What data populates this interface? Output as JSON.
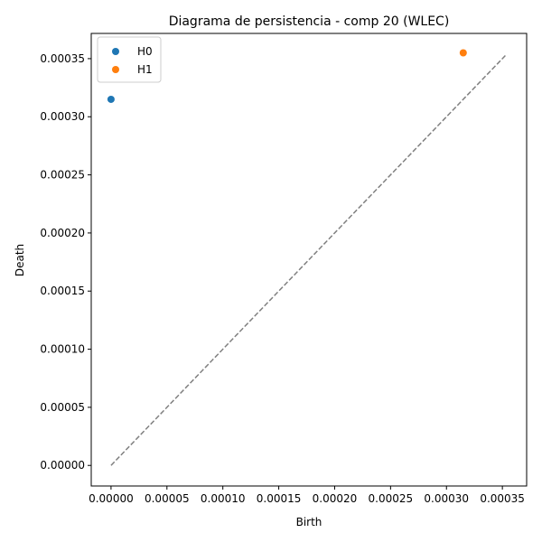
{
  "chart_data": {
    "type": "scatter",
    "title": "Diagrama de persistencia - comp 20 (WLEC)",
    "xlabel": "Birth",
    "ylabel": "Death",
    "xlim": [
      -1.77e-05,
      0.0003717
    ],
    "ylim": [
      -1.77e-05,
      0.0003717
    ],
    "xticks": [
      0,
      5e-05,
      0.0001,
      0.00015,
      0.0002,
      0.00025,
      0.0003,
      0.00035
    ],
    "xtick_labels": [
      "0.00000",
      "0.00005",
      "0.00010",
      "0.00015",
      "0.00020",
      "0.00025",
      "0.00030",
      "0.00035"
    ],
    "yticks": [
      0,
      5e-05,
      0.0001,
      0.00015,
      0.0002,
      0.00025,
      0.0003,
      0.00035
    ],
    "ytick_labels": [
      "0.00000",
      "0.00005",
      "0.00010",
      "0.00015",
      "0.00020",
      "0.00025",
      "0.00030",
      "0.00035"
    ],
    "grid": false,
    "legend_position": "top-left",
    "diagonal": {
      "from": [
        0,
        0
      ],
      "to": [
        0.000354,
        0.000354
      ],
      "color": "#808080",
      "style": "dashed"
    },
    "series": [
      {
        "name": "H0",
        "color": "#1f77b4",
        "points": [
          [
            0,
            0.000315
          ]
        ]
      },
      {
        "name": "H1",
        "color": "#ff7f0e",
        "points": [
          [
            0.000315,
            0.000355
          ]
        ]
      }
    ]
  }
}
